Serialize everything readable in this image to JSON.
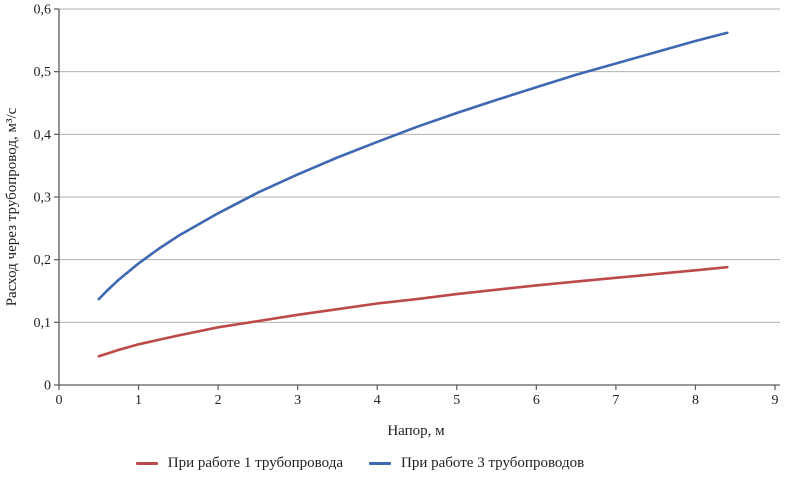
{
  "figure": {
    "background": "#ffffff",
    "axis_color": "#5a5a5a",
    "gridline_color": "#b0b0b0",
    "text_color": "#1f1f1f"
  },
  "chart_data": {
    "type": "line",
    "title": "",
    "xlabel": "Напор, м",
    "ylabel": "Расход через трубопровод, м³/с",
    "xlim": [
      0,
      9
    ],
    "ylim": [
      0,
      0.6
    ],
    "grid": "horizontal-only",
    "legend_position": "bottom",
    "decimal_separator": ",",
    "x_ticks": [
      {
        "v": 0,
        "label": "0"
      },
      {
        "v": 1,
        "label": "1"
      },
      {
        "v": 2,
        "label": "2"
      },
      {
        "v": 3,
        "label": "3"
      },
      {
        "v": 4,
        "label": "4"
      },
      {
        "v": 5,
        "label": "5"
      },
      {
        "v": 6,
        "label": "6"
      },
      {
        "v": 7,
        "label": "7"
      },
      {
        "v": 8,
        "label": "8"
      },
      {
        "v": 9,
        "label": "9"
      }
    ],
    "y_ticks": [
      {
        "v": 0,
        "label": "0"
      },
      {
        "v": 0.1,
        "label": "0,1"
      },
      {
        "v": 0.2,
        "label": "0,2"
      },
      {
        "v": 0.3,
        "label": "0,3"
      },
      {
        "v": 0.4,
        "label": "0,4"
      },
      {
        "v": 0.5,
        "label": "0,5"
      },
      {
        "v": 0.6,
        "label": "0,6"
      }
    ],
    "series": [
      {
        "name": "При работе 1 трубопровода",
        "color": "#bc4a48",
        "x": [
          0.5,
          0.6,
          0.75,
          1,
          1.25,
          1.5,
          2,
          2.5,
          3,
          3.5,
          4,
          4.5,
          5,
          5.5,
          6,
          6.5,
          7,
          7.5,
          8,
          8.4
        ],
        "y": [
          0.046,
          0.05,
          0.056,
          0.065,
          0.072,
          0.079,
          0.092,
          0.102,
          0.112,
          0.121,
          0.13,
          0.137,
          0.145,
          0.152,
          0.159,
          0.165,
          0.171,
          0.177,
          0.183,
          0.188
        ]
      },
      {
        "name": "При работе 3 трубопроводов",
        "color": "#3e68b2",
        "x": [
          0.5,
          0.6,
          0.75,
          1,
          1.25,
          1.5,
          2,
          2.5,
          3,
          3.5,
          4,
          4.5,
          5,
          5.5,
          6,
          6.5,
          7,
          7.5,
          8,
          8.4
        ],
        "y": [
          0.137,
          0.15,
          0.168,
          0.194,
          0.217,
          0.238,
          0.274,
          0.307,
          0.336,
          0.363,
          0.388,
          0.412,
          0.434,
          0.455,
          0.475,
          0.495,
          0.513,
          0.531,
          0.549,
          0.562
        ]
      }
    ]
  }
}
